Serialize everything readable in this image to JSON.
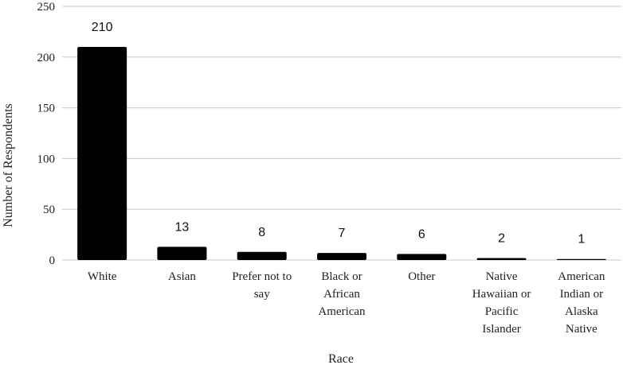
{
  "chart_data": {
    "type": "bar",
    "categories": [
      "White",
      "Asian",
      "Prefer not to say",
      "Black or African American",
      "Other",
      "Native Hawaiian or Pacific Islander",
      "American Indian or Alaska Native"
    ],
    "category_lines": [
      [
        "White"
      ],
      [
        "Asian"
      ],
      [
        "Prefer not to",
        "say"
      ],
      [
        "Black or",
        "African",
        "American"
      ],
      [
        "Other"
      ],
      [
        "Native",
        "Hawaiian or",
        "Pacific",
        "Islander"
      ],
      [
        "American",
        "Indian or",
        "Alaska",
        "Native"
      ]
    ],
    "values": [
      210,
      13,
      8,
      7,
      6,
      2,
      1
    ],
    "xlabel": "Race",
    "ylabel": "Number of Respondents",
    "ylim": [
      0,
      250
    ],
    "yticks": [
      0,
      50,
      100,
      150,
      200,
      250
    ],
    "grid": true,
    "bar_color": "#000000",
    "grid_color": "#c8c8c8"
  }
}
